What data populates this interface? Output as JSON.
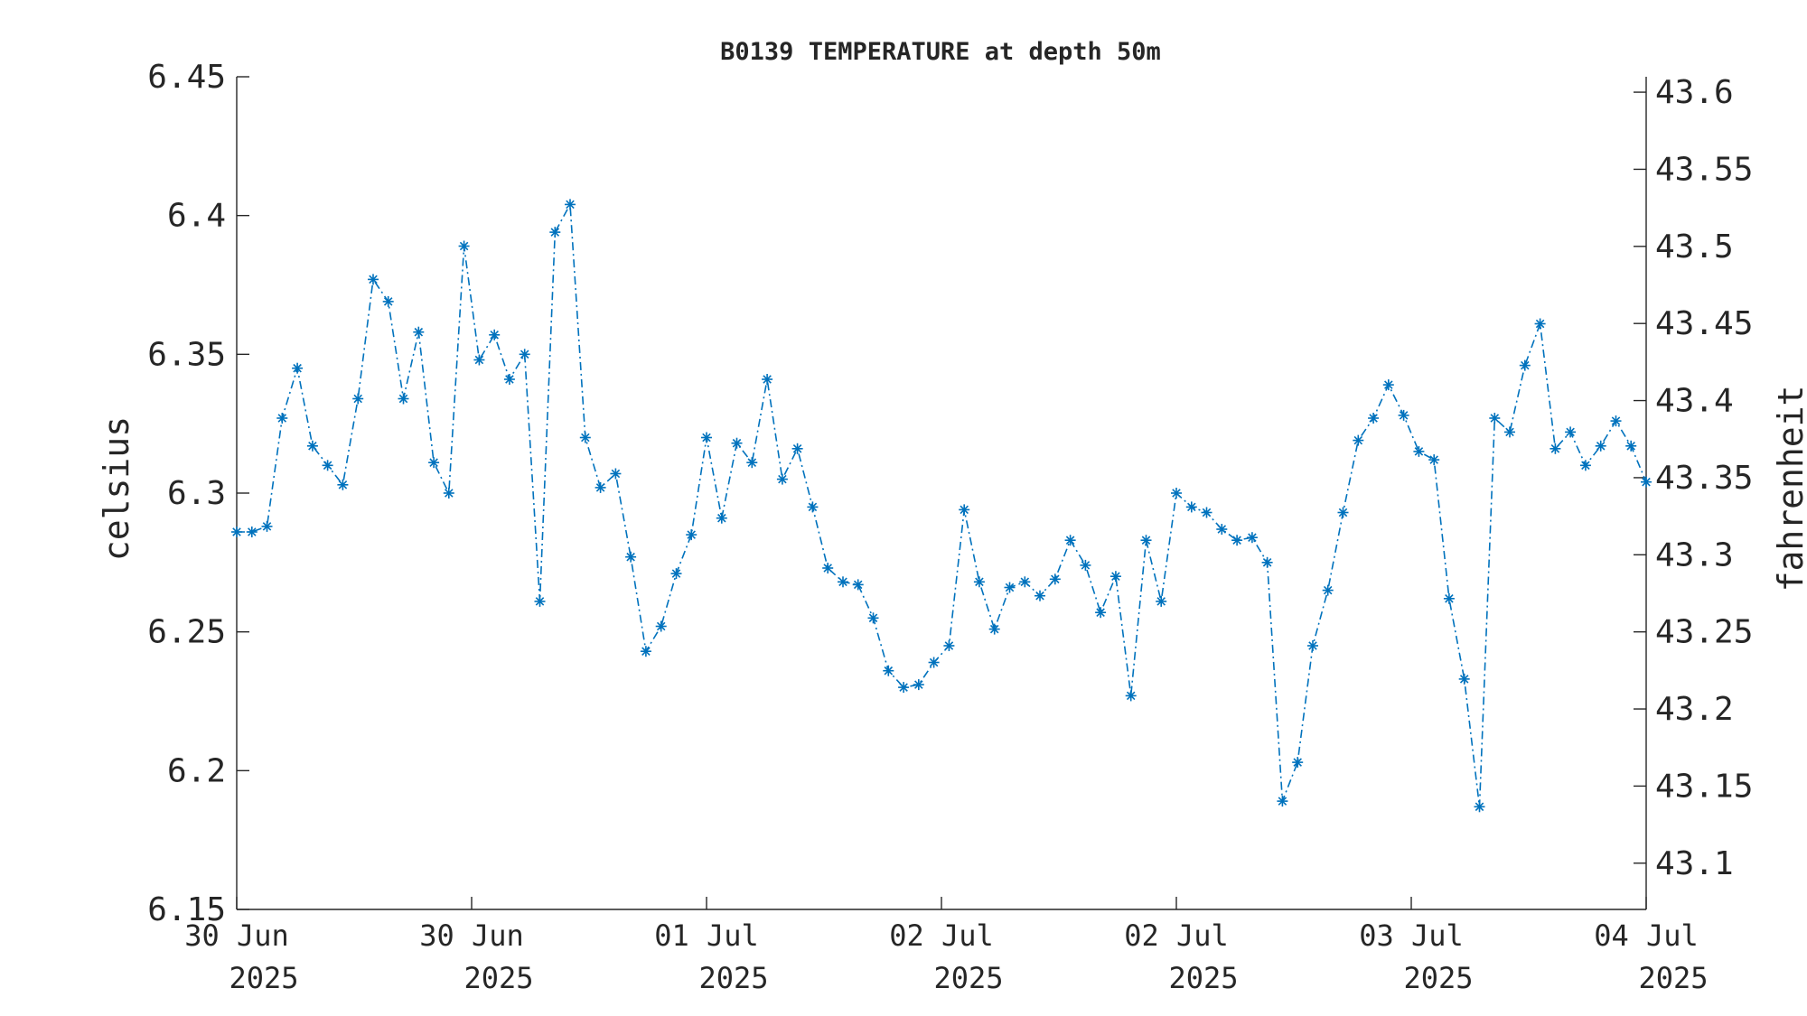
{
  "chart_data": {
    "type": "line",
    "title": "B0139 TEMPERATURE at depth 50m",
    "ylabel": "celsius",
    "y2label": "fahrenheit",
    "ylim": [
      6.15,
      6.45
    ],
    "y2lim": [
      43.07,
      43.61
    ],
    "yticks": [
      "6.15",
      "6.2",
      "6.25",
      "6.3",
      "6.35",
      "6.4",
      "6.45"
    ],
    "y2ticks": [
      "43.1",
      "43.15",
      "43.2",
      "43.25",
      "43.3",
      "43.35",
      "43.4",
      "43.45",
      "43.5",
      "43.55",
      "43.6"
    ],
    "xticks": [
      {
        "day": "30 Jun",
        "year": "2025"
      },
      {
        "day": "30 Jun",
        "year": "2025"
      },
      {
        "day": "01 Jul",
        "year": "2025"
      },
      {
        "day": "02 Jul",
        "year": "2025"
      },
      {
        "day": "02 Jul",
        "year": "2025"
      },
      {
        "day": "03 Jul",
        "year": "2025"
      },
      {
        "day": "04 Jul",
        "year": "2025"
      }
    ],
    "grid": false,
    "series_color": "#0072BD",
    "line_style": "dash-dot",
    "marker": "asterisk",
    "series": [
      {
        "values": [
          6.286,
          6.286,
          6.288,
          6.327,
          6.345,
          6.317,
          6.31,
          6.303,
          6.334,
          6.377,
          6.369,
          6.334,
          6.358,
          6.311,
          6.3,
          6.389,
          6.348,
          6.357,
          6.341,
          6.35,
          6.261,
          6.394,
          6.404,
          6.32,
          6.302,
          6.307,
          6.277,
          6.243,
          6.252,
          6.271,
          6.285,
          6.32,
          6.291,
          6.318,
          6.311,
          6.341,
          6.305,
          6.316,
          6.295,
          6.273,
          6.268,
          6.267,
          6.255,
          6.236,
          6.23,
          6.231,
          6.239,
          6.245,
          6.294,
          6.268,
          6.251,
          6.266,
          6.268,
          6.263,
          6.269,
          6.283,
          6.274,
          6.257,
          6.27,
          6.227,
          6.283,
          6.261,
          6.3,
          6.295,
          6.293,
          6.287,
          6.283,
          6.284,
          6.275,
          6.189,
          6.203,
          6.245,
          6.265,
          6.293,
          6.319,
          6.327,
          6.339,
          6.328,
          6.315,
          6.312,
          6.262,
          6.233,
          6.187,
          6.327,
          6.322,
          6.346,
          6.361,
          6.316,
          6.322,
          6.31,
          6.317,
          6.326,
          6.317,
          6.304
        ]
      }
    ]
  }
}
